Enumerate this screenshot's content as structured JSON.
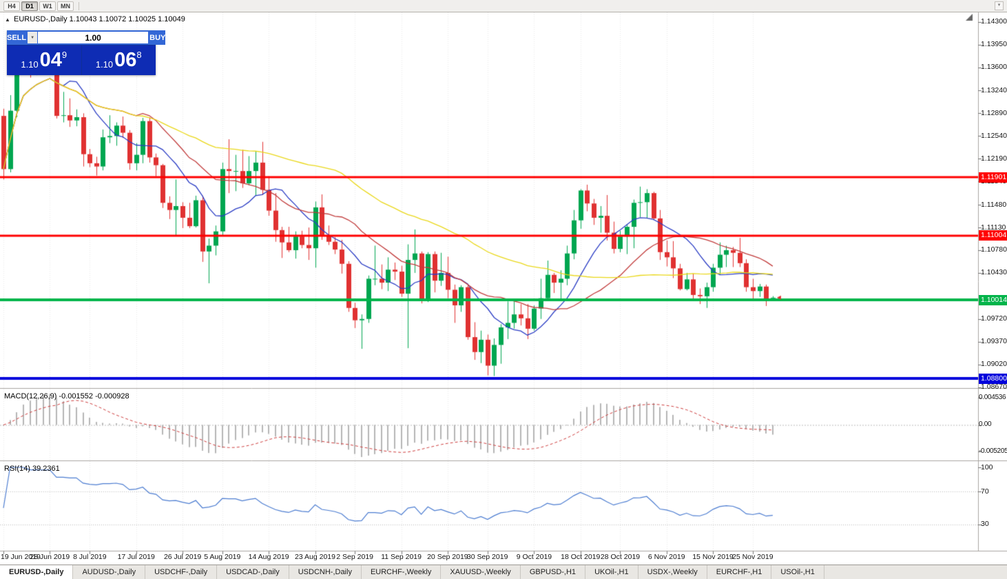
{
  "toolbar": {
    "timeframes": [
      "H4",
      "D1",
      "W1",
      "MN"
    ],
    "active_timeframe": "D1"
  },
  "icons": {
    "collapse": "▲",
    "volume_dropdown": "▼",
    "toolbar_overflow": "▾"
  },
  "chart_header": {
    "title": "EURUSD-,Daily 1.10043 1.10072 1.10025 1.10049"
  },
  "trade_panel": {
    "sell_label": "SELL",
    "buy_label": "BUY",
    "volume": "1.00",
    "sell_price_prefix": "1.10",
    "sell_price_big": "04",
    "sell_price_sup": "9",
    "buy_price_prefix": "1.10",
    "buy_price_big": "06",
    "buy_price_sup": "8"
  },
  "price_axis": {
    "labels": [
      "1.14300",
      "1.13950",
      "1.13600",
      "1.13240",
      "1.12890",
      "1.12540",
      "1.12190",
      "1.11840",
      "1.11480",
      "1.11130",
      "1.10780",
      "1.10430",
      "1.09720",
      "1.09370",
      "1.09020",
      "1.08670"
    ]
  },
  "indicator_panels": {
    "macd_label": "MACD(12,26,9) -0.001552 -0.000928",
    "macd_axis_labels": [
      "0.004536",
      "0.00",
      "-0.005205"
    ],
    "rsi_label": "RSI(14) 39.2361",
    "rsi_axis_labels": [
      "100",
      "70",
      "30"
    ]
  },
  "date_axis": {
    "ticks": [
      {
        "label": "19 Jun 2019",
        "index": 0
      },
      {
        "label": "28 Jun 2019",
        "index": 7
      },
      {
        "label": "8 Jul 2019",
        "index": 13
      },
      {
        "label": "17 Jul 2019",
        "index": 20
      },
      {
        "label": "26 Jul 2019",
        "index": 27
      },
      {
        "label": "5 Aug 2019",
        "index": 33
      },
      {
        "label": "14 Aug 2019",
        "index": 40
      },
      {
        "label": "23 Aug 2019",
        "index": 47
      },
      {
        "label": "2 Sep 2019",
        "index": 53
      },
      {
        "label": "11 Sep 2019",
        "index": 60
      },
      {
        "label": "20 Sep 2019",
        "index": 67
      },
      {
        "label": "30 Sep 2019",
        "index": 73
      },
      {
        "label": "9 Oct 2019",
        "index": 80
      },
      {
        "label": "18 Oct 2019",
        "index": 87
      },
      {
        "label": "28 Oct 2019",
        "index": 93
      },
      {
        "label": "6 Nov 2019",
        "index": 100
      },
      {
        "label": "15 Nov 2019",
        "index": 107
      },
      {
        "label": "25 Nov 2019",
        "index": 113
      }
    ]
  },
  "tabs": {
    "active": "EURUSD-,Daily",
    "items": [
      "EURUSD-,Daily",
      "AUDUSD-,Daily",
      "USDCHF-,Daily",
      "USDCAD-,Daily",
      "USDCNH-,Daily",
      "EURCHF-,Weekly",
      "XAUUSD-,Weekly",
      "GBPUSD-,H1",
      "UKOil-,H1",
      "USDX-,Weekly",
      "EURCHF-,H1",
      "USOil-,H1"
    ],
    "items_full": [
      "EURUSD-,Daily",
      "AUDUSD-,Daily",
      "USDCHF-,Daily",
      "USDCAD-,Daily",
      "USDCNH-,Daily",
      "EURCHF-,Weekly",
      "XAUUSD-,Weekly",
      "GBPUSD-,H1",
      "UKOil-,H1",
      "USDX-,Weekly",
      "EURCHF-,H1",
      "USOil-,H1"
    ]
  },
  "chart_data": {
    "type": "candlestick",
    "symbol": "EURUSD-",
    "timeframe": "Daily",
    "ohlc_current": {
      "open": 1.10043,
      "high": 1.10072,
      "low": 1.10025,
      "close": 1.10049
    },
    "y_range": [
      1.08655,
      1.14445
    ],
    "colors": {
      "bull": "#00a650",
      "bear": "#e03131",
      "macd_histogram": "#b5b5b5",
      "macd_signal": "#cc3a3a",
      "rsi_line": "#4a7bd0",
      "grid": "#e7e7e7",
      "separator": "#a8a5a0",
      "tick": "#707070"
    },
    "moving_averages": [
      {
        "period": 10,
        "color": "#2a3cc4"
      },
      {
        "period": 21,
        "color": "#c13b3b"
      },
      {
        "period": 50,
        "color": "#e9d718"
      }
    ],
    "hlines": [
      {
        "price": 1.11901,
        "color": "#ff0000",
        "width": 3,
        "label": "1.11901"
      },
      {
        "price": 1.11004,
        "color": "#ff0000",
        "width": 3,
        "label": "1.11004"
      },
      {
        "price": 1.10014,
        "color": "#00b44a",
        "width": 4,
        "label": "1.10014"
      },
      {
        "price": 1.088,
        "color": "#0000dc",
        "width": 4,
        "label": "1.08800"
      }
    ],
    "macd": {
      "fast": 12,
      "slow": 26,
      "signal": 9,
      "main_value": -0.001552,
      "signal_value": -0.000928
    },
    "rsi": {
      "period": 14,
      "value": 39.2361,
      "levels": [
        70,
        30
      ]
    },
    "candles": [
      [
        1.1285,
        1.1296,
        1.1187,
        1.1203
      ],
      [
        1.1203,
        1.1317,
        1.1198,
        1.1293
      ],
      [
        1.1293,
        1.1378,
        1.1283,
        1.1368
      ],
      [
        1.1368,
        1.1403,
        1.1361,
        1.1399
      ],
      [
        1.1399,
        1.1412,
        1.1344,
        1.1365
      ],
      [
        1.1365,
        1.1391,
        1.1348,
        1.1371
      ],
      [
        1.1371,
        1.1388,
        1.1359,
        1.1369
      ],
      [
        1.1369,
        1.1391,
        1.1351,
        1.1373
      ],
      [
        1.1364,
        1.1368,
        1.1281,
        1.1285
      ],
      [
        1.1285,
        1.1322,
        1.1275,
        1.1286
      ],
      [
        1.1286,
        1.1312,
        1.1268,
        1.1278
      ],
      [
        1.1278,
        1.1295,
        1.1269,
        1.1283
      ],
      [
        1.1283,
        1.1289,
        1.1207,
        1.1226
      ],
      [
        1.1226,
        1.1234,
        1.1206,
        1.1212
      ],
      [
        1.1212,
        1.1222,
        1.1193,
        1.1207
      ],
      [
        1.1207,
        1.1264,
        1.1201,
        1.1252
      ],
      [
        1.1252,
        1.1286,
        1.1243,
        1.1254
      ],
      [
        1.1254,
        1.1275,
        1.1239,
        1.127
      ],
      [
        1.127,
        1.1284,
        1.1251,
        1.1259
      ],
      [
        1.1259,
        1.1263,
        1.1202,
        1.1212
      ],
      [
        1.1212,
        1.1243,
        1.1201,
        1.1225
      ],
      [
        1.1225,
        1.1282,
        1.1212,
        1.1277
      ],
      [
        1.1277,
        1.1283,
        1.1213,
        1.1221
      ],
      [
        1.1221,
        1.1227,
        1.1192,
        1.1209
      ],
      [
        1.1209,
        1.1211,
        1.1143,
        1.1151
      ],
      [
        1.1151,
        1.1161,
        1.1126,
        1.114
      ],
      [
        1.114,
        1.1187,
        1.1101,
        1.1146
      ],
      [
        1.1146,
        1.1152,
        1.1112,
        1.1128
      ],
      [
        1.1128,
        1.1151,
        1.1112,
        1.1115
      ],
      [
        1.1115,
        1.1162,
        1.1113,
        1.1155
      ],
      [
        1.1155,
        1.1162,
        1.106,
        1.1076
      ],
      [
        1.1076,
        1.1096,
        1.1027,
        1.1085
      ],
      [
        1.1085,
        1.1116,
        1.107,
        1.1107
      ],
      [
        1.1107,
        1.1213,
        1.1101,
        1.1203
      ],
      [
        1.1203,
        1.1249,
        1.1166,
        1.12
      ],
      [
        1.12,
        1.1225,
        1.1169,
        1.12
      ],
      [
        1.12,
        1.1233,
        1.1174,
        1.1181
      ],
      [
        1.1181,
        1.1223,
        1.1178,
        1.12
      ],
      [
        1.12,
        1.123,
        1.1162,
        1.1213
      ],
      [
        1.1213,
        1.1245,
        1.1163,
        1.1171
      ],
      [
        1.1171,
        1.1192,
        1.1131,
        1.1139
      ],
      [
        1.1139,
        1.1166,
        1.1091,
        1.1109
      ],
      [
        1.1109,
        1.1114,
        1.1066,
        1.109
      ],
      [
        1.109,
        1.1114,
        1.1075,
        1.1078
      ],
      [
        1.1078,
        1.1107,
        1.1065,
        1.1099
      ],
      [
        1.1099,
        1.1108,
        1.1081,
        1.1086
      ],
      [
        1.1086,
        1.1113,
        1.1063,
        1.1081
      ],
      [
        1.1081,
        1.1153,
        1.1051,
        1.1144
      ],
      [
        1.1144,
        1.1164,
        1.1094,
        1.1101
      ],
      [
        1.1101,
        1.1116,
        1.1086,
        1.1091
      ],
      [
        1.1091,
        1.1098,
        1.1072,
        1.1079
      ],
      [
        1.1079,
        1.1094,
        1.1042,
        1.1057
      ],
      [
        1.1057,
        1.1061,
        1.0983,
        1.0989
      ],
      [
        1.0989,
        1.0997,
        1.0958,
        1.097
      ],
      [
        1.097,
        1.0979,
        1.0926,
        1.0972
      ],
      [
        1.0972,
        1.1039,
        1.0966,
        1.1034
      ],
      [
        1.1034,
        1.1085,
        1.1024,
        1.1034
      ],
      [
        1.1034,
        1.1056,
        1.1018,
        1.1028
      ],
      [
        1.1028,
        1.1067,
        1.1015,
        1.1048
      ],
      [
        1.1048,
        1.1059,
        1.1032,
        1.1045
      ],
      [
        1.1045,
        1.1054,
        1.1006,
        1.1011
      ],
      [
        1.1011,
        1.1087,
        1.0927,
        1.1063
      ],
      [
        1.1063,
        1.111,
        1.1043,
        1.1073
      ],
      [
        1.1073,
        1.1076,
        1.0996,
        1.1003
      ],
      [
        1.1003,
        1.1075,
        1.0998,
        1.1072
      ],
      [
        1.1072,
        1.1076,
        1.1013,
        1.1031
      ],
      [
        1.1031,
        1.1074,
        1.1023,
        1.1043
      ],
      [
        1.1043,
        1.1068,
        1.1004,
        1.1017
      ],
      [
        1.1017,
        1.1025,
        1.0966,
        1.0993
      ],
      [
        1.0993,
        1.1024,
        1.0983,
        1.1021
      ],
      [
        1.1021,
        1.1024,
        1.094,
        1.0944
      ],
      [
        1.0944,
        1.0967,
        1.0909,
        1.0921
      ],
      [
        1.0921,
        1.0954,
        1.0904,
        1.094
      ],
      [
        1.094,
        1.0948,
        1.0885,
        1.09
      ],
      [
        1.09,
        1.0942,
        1.0884,
        1.0932
      ],
      [
        1.0932,
        1.0964,
        1.0903,
        1.0959
      ],
      [
        1.0959,
        1.0999,
        1.0941,
        1.0966
      ],
      [
        1.0966,
        1.0999,
        1.0957,
        1.0979
      ],
      [
        1.0979,
        1.0995,
        1.0962,
        1.0973
      ],
      [
        1.0973,
        1.0995,
        1.0941,
        1.0957
      ],
      [
        1.0957,
        1.0993,
        1.0954,
        1.0988
      ],
      [
        1.0988,
        1.1034,
        1.0972,
        1.1004
      ],
      [
        1.1004,
        1.1062,
        1.1002,
        1.104
      ],
      [
        1.104,
        1.1043,
        1.1012,
        1.1028
      ],
      [
        1.1028,
        1.1047,
        1.1001,
        1.1034
      ],
      [
        1.1034,
        1.1085,
        1.1024,
        1.1073
      ],
      [
        1.1073,
        1.114,
        1.1064,
        1.1124
      ],
      [
        1.1124,
        1.1172,
        1.1111,
        1.117
      ],
      [
        1.117,
        1.1179,
        1.1138,
        1.115
      ],
      [
        1.115,
        1.1157,
        1.1117,
        1.1128
      ],
      [
        1.1128,
        1.1146,
        1.1105,
        1.1131
      ],
      [
        1.1131,
        1.1163,
        1.1093,
        1.1105
      ],
      [
        1.1105,
        1.1122,
        1.1073,
        1.108
      ],
      [
        1.108,
        1.1108,
        1.1075,
        1.1099
      ],
      [
        1.1099,
        1.1118,
        1.1072,
        1.1114
      ],
      [
        1.1114,
        1.1156,
        1.1081,
        1.1151
      ],
      [
        1.1151,
        1.1176,
        1.1129,
        1.1152
      ],
      [
        1.1152,
        1.1172,
        1.1128,
        1.1166
      ],
      [
        1.1166,
        1.1168,
        1.1125,
        1.1127
      ],
      [
        1.1127,
        1.114,
        1.1063,
        1.1075
      ],
      [
        1.1075,
        1.1093,
        1.1053,
        1.1067
      ],
      [
        1.1067,
        1.1092,
        1.1035,
        1.105
      ],
      [
        1.105,
        1.1057,
        1.1016,
        1.1018
      ],
      [
        1.1018,
        1.1043,
        1.1016,
        1.1033
      ],
      [
        1.1033,
        1.1042,
        1.1002,
        1.1009
      ],
      [
        1.1009,
        1.1019,
        1.0995,
        1.1007
      ],
      [
        1.1007,
        1.1028,
        1.0989,
        1.1021
      ],
      [
        1.1021,
        1.1057,
        1.1014,
        1.1051
      ],
      [
        1.1051,
        1.109,
        1.1041,
        1.1071
      ],
      [
        1.1071,
        1.1085,
        1.1052,
        1.1078
      ],
      [
        1.1078,
        1.1083,
        1.1052,
        1.1074
      ],
      [
        1.1074,
        1.1097,
        1.1052,
        1.1058
      ],
      [
        1.1058,
        1.1064,
        1.1014,
        1.1021
      ],
      [
        1.1021,
        1.1034,
        1.1003,
        1.1015
      ],
      [
        1.1015,
        1.1026,
        1.1006,
        1.1022
      ],
      [
        1.1022,
        1.1025,
        1.0992,
        1.1001
      ],
      [
        1.10043,
        1.10072,
        1.10025,
        1.10049
      ]
    ]
  }
}
